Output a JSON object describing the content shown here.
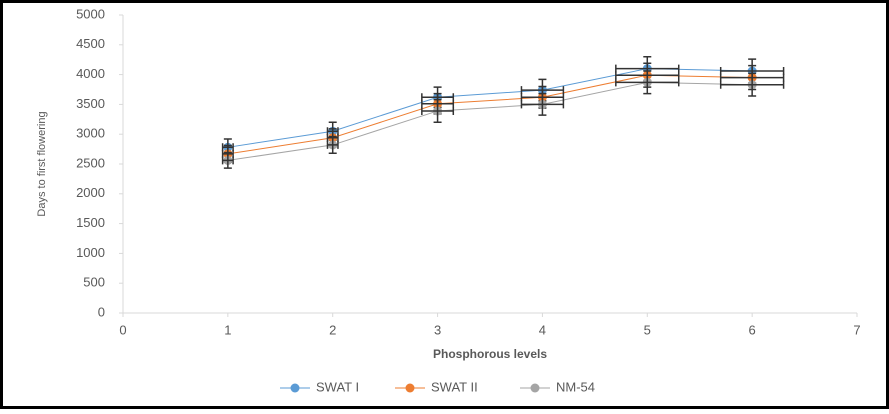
{
  "chart_data": {
    "type": "scatter-line",
    "x_label": "Phosphorous levels",
    "y_label": "Days to first flowering",
    "x": [
      1,
      2,
      3,
      4,
      5,
      6
    ],
    "series": [
      {
        "name": "SWAT I",
        "color": "#5b9bd5",
        "values": [
          2780,
          3050,
          3620,
          3740,
          4100,
          4060
        ],
        "yerr": [
          140,
          150,
          170,
          180,
          200,
          200
        ],
        "xerr": [
          0.05,
          0.05,
          0.15,
          0.2,
          0.3,
          0.3
        ]
      },
      {
        "name": "SWAT II",
        "color": "#ed7d31",
        "values": [
          2670,
          2940,
          3510,
          3620,
          3990,
          3950
        ],
        "yerr": [
          140,
          150,
          170,
          180,
          200,
          200
        ],
        "xerr": [
          0.05,
          0.05,
          0.15,
          0.2,
          0.3,
          0.3
        ]
      },
      {
        "name": "NM-54",
        "color": "#a5a5a5",
        "values": [
          2560,
          2820,
          3390,
          3500,
          3870,
          3830
        ],
        "yerr": [
          130,
          140,
          190,
          180,
          190,
          190
        ],
        "xerr": [
          0.05,
          0.05,
          0.15,
          0.2,
          0.3,
          0.3
        ]
      }
    ],
    "xlim": [
      0,
      7
    ],
    "xticks": [
      0,
      1,
      2,
      3,
      4,
      5,
      6,
      7
    ],
    "ylim": [
      0,
      5000
    ],
    "yticks": [
      0,
      500,
      1000,
      1500,
      2000,
      2500,
      3000,
      3500,
      4000,
      4500,
      5000
    ],
    "legend": "bottom",
    "error_color": "#333333"
  }
}
